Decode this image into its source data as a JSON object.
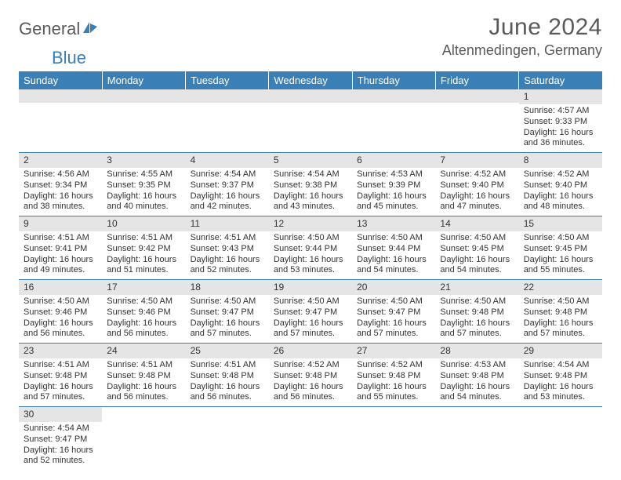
{
  "logo": {
    "part1": "General",
    "part2": "Blue"
  },
  "header": {
    "month_title": "June 2024",
    "location": "Altenmedingen, Germany"
  },
  "weekdays": [
    "Sunday",
    "Monday",
    "Tuesday",
    "Wednesday",
    "Thursday",
    "Friday",
    "Saturday"
  ],
  "colors": {
    "header_bg": "#3a7fb5",
    "header_text": "#ffffff",
    "daybar_bg": "#e5e5e5",
    "border": "#3a7fb5",
    "text": "#333333",
    "logo_gray": "#5a5a5a",
    "logo_blue": "#3a7fb5"
  },
  "grid": [
    [
      {
        "day": "",
        "sunrise": "",
        "sunset": "",
        "daylight": ""
      },
      {
        "day": "",
        "sunrise": "",
        "sunset": "",
        "daylight": ""
      },
      {
        "day": "",
        "sunrise": "",
        "sunset": "",
        "daylight": ""
      },
      {
        "day": "",
        "sunrise": "",
        "sunset": "",
        "daylight": ""
      },
      {
        "day": "",
        "sunrise": "",
        "sunset": "",
        "daylight": ""
      },
      {
        "day": "",
        "sunrise": "",
        "sunset": "",
        "daylight": ""
      },
      {
        "day": "1",
        "sunrise": "Sunrise: 4:57 AM",
        "sunset": "Sunset: 9:33 PM",
        "daylight": "Daylight: 16 hours and 36 minutes."
      }
    ],
    [
      {
        "day": "2",
        "sunrise": "Sunrise: 4:56 AM",
        "sunset": "Sunset: 9:34 PM",
        "daylight": "Daylight: 16 hours and 38 minutes."
      },
      {
        "day": "3",
        "sunrise": "Sunrise: 4:55 AM",
        "sunset": "Sunset: 9:35 PM",
        "daylight": "Daylight: 16 hours and 40 minutes."
      },
      {
        "day": "4",
        "sunrise": "Sunrise: 4:54 AM",
        "sunset": "Sunset: 9:37 PM",
        "daylight": "Daylight: 16 hours and 42 minutes."
      },
      {
        "day": "5",
        "sunrise": "Sunrise: 4:54 AM",
        "sunset": "Sunset: 9:38 PM",
        "daylight": "Daylight: 16 hours and 43 minutes."
      },
      {
        "day": "6",
        "sunrise": "Sunrise: 4:53 AM",
        "sunset": "Sunset: 9:39 PM",
        "daylight": "Daylight: 16 hours and 45 minutes."
      },
      {
        "day": "7",
        "sunrise": "Sunrise: 4:52 AM",
        "sunset": "Sunset: 9:40 PM",
        "daylight": "Daylight: 16 hours and 47 minutes."
      },
      {
        "day": "8",
        "sunrise": "Sunrise: 4:52 AM",
        "sunset": "Sunset: 9:40 PM",
        "daylight": "Daylight: 16 hours and 48 minutes."
      }
    ],
    [
      {
        "day": "9",
        "sunrise": "Sunrise: 4:51 AM",
        "sunset": "Sunset: 9:41 PM",
        "daylight": "Daylight: 16 hours and 49 minutes."
      },
      {
        "day": "10",
        "sunrise": "Sunrise: 4:51 AM",
        "sunset": "Sunset: 9:42 PM",
        "daylight": "Daylight: 16 hours and 51 minutes."
      },
      {
        "day": "11",
        "sunrise": "Sunrise: 4:51 AM",
        "sunset": "Sunset: 9:43 PM",
        "daylight": "Daylight: 16 hours and 52 minutes."
      },
      {
        "day": "12",
        "sunrise": "Sunrise: 4:50 AM",
        "sunset": "Sunset: 9:44 PM",
        "daylight": "Daylight: 16 hours and 53 minutes."
      },
      {
        "day": "13",
        "sunrise": "Sunrise: 4:50 AM",
        "sunset": "Sunset: 9:44 PM",
        "daylight": "Daylight: 16 hours and 54 minutes."
      },
      {
        "day": "14",
        "sunrise": "Sunrise: 4:50 AM",
        "sunset": "Sunset: 9:45 PM",
        "daylight": "Daylight: 16 hours and 54 minutes."
      },
      {
        "day": "15",
        "sunrise": "Sunrise: 4:50 AM",
        "sunset": "Sunset: 9:45 PM",
        "daylight": "Daylight: 16 hours and 55 minutes."
      }
    ],
    [
      {
        "day": "16",
        "sunrise": "Sunrise: 4:50 AM",
        "sunset": "Sunset: 9:46 PM",
        "daylight": "Daylight: 16 hours and 56 minutes."
      },
      {
        "day": "17",
        "sunrise": "Sunrise: 4:50 AM",
        "sunset": "Sunset: 9:46 PM",
        "daylight": "Daylight: 16 hours and 56 minutes."
      },
      {
        "day": "18",
        "sunrise": "Sunrise: 4:50 AM",
        "sunset": "Sunset: 9:47 PM",
        "daylight": "Daylight: 16 hours and 57 minutes."
      },
      {
        "day": "19",
        "sunrise": "Sunrise: 4:50 AM",
        "sunset": "Sunset: 9:47 PM",
        "daylight": "Daylight: 16 hours and 57 minutes."
      },
      {
        "day": "20",
        "sunrise": "Sunrise: 4:50 AM",
        "sunset": "Sunset: 9:47 PM",
        "daylight": "Daylight: 16 hours and 57 minutes."
      },
      {
        "day": "21",
        "sunrise": "Sunrise: 4:50 AM",
        "sunset": "Sunset: 9:48 PM",
        "daylight": "Daylight: 16 hours and 57 minutes."
      },
      {
        "day": "22",
        "sunrise": "Sunrise: 4:50 AM",
        "sunset": "Sunset: 9:48 PM",
        "daylight": "Daylight: 16 hours and 57 minutes."
      }
    ],
    [
      {
        "day": "23",
        "sunrise": "Sunrise: 4:51 AM",
        "sunset": "Sunset: 9:48 PM",
        "daylight": "Daylight: 16 hours and 57 minutes."
      },
      {
        "day": "24",
        "sunrise": "Sunrise: 4:51 AM",
        "sunset": "Sunset: 9:48 PM",
        "daylight": "Daylight: 16 hours and 56 minutes."
      },
      {
        "day": "25",
        "sunrise": "Sunrise: 4:51 AM",
        "sunset": "Sunset: 9:48 PM",
        "daylight": "Daylight: 16 hours and 56 minutes."
      },
      {
        "day": "26",
        "sunrise": "Sunrise: 4:52 AM",
        "sunset": "Sunset: 9:48 PM",
        "daylight": "Daylight: 16 hours and 56 minutes."
      },
      {
        "day": "27",
        "sunrise": "Sunrise: 4:52 AM",
        "sunset": "Sunset: 9:48 PM",
        "daylight": "Daylight: 16 hours and 55 minutes."
      },
      {
        "day": "28",
        "sunrise": "Sunrise: 4:53 AM",
        "sunset": "Sunset: 9:48 PM",
        "daylight": "Daylight: 16 hours and 54 minutes."
      },
      {
        "day": "29",
        "sunrise": "Sunrise: 4:54 AM",
        "sunset": "Sunset: 9:48 PM",
        "daylight": "Daylight: 16 hours and 53 minutes."
      }
    ],
    [
      {
        "day": "30",
        "sunrise": "Sunrise: 4:54 AM",
        "sunset": "Sunset: 9:47 PM",
        "daylight": "Daylight: 16 hours and 52 minutes."
      },
      {
        "day": "",
        "sunrise": "",
        "sunset": "",
        "daylight": ""
      },
      {
        "day": "",
        "sunrise": "",
        "sunset": "",
        "daylight": ""
      },
      {
        "day": "",
        "sunrise": "",
        "sunset": "",
        "daylight": ""
      },
      {
        "day": "",
        "sunrise": "",
        "sunset": "",
        "daylight": ""
      },
      {
        "day": "",
        "sunrise": "",
        "sunset": "",
        "daylight": ""
      },
      {
        "day": "",
        "sunrise": "",
        "sunset": "",
        "daylight": ""
      }
    ]
  ]
}
